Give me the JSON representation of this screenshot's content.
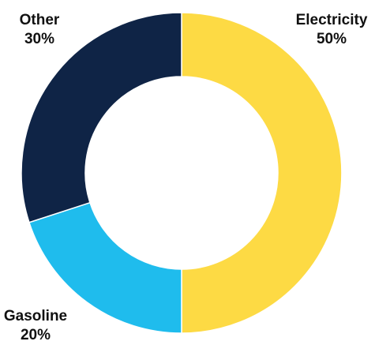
{
  "chart_data": {
    "type": "pie",
    "style": "donut",
    "start": "12 o'clock, clockwise",
    "slices": [
      {
        "label": "Electricity",
        "percent_label": "50%",
        "value": 50,
        "color": "#FDDA44"
      },
      {
        "label": "Gasoline",
        "percent_label": "20%",
        "value": 20,
        "color": "#1FBCED"
      },
      {
        "label": "Other",
        "percent_label": "30%",
        "value": 30,
        "color": "#0F2446"
      }
    ]
  }
}
